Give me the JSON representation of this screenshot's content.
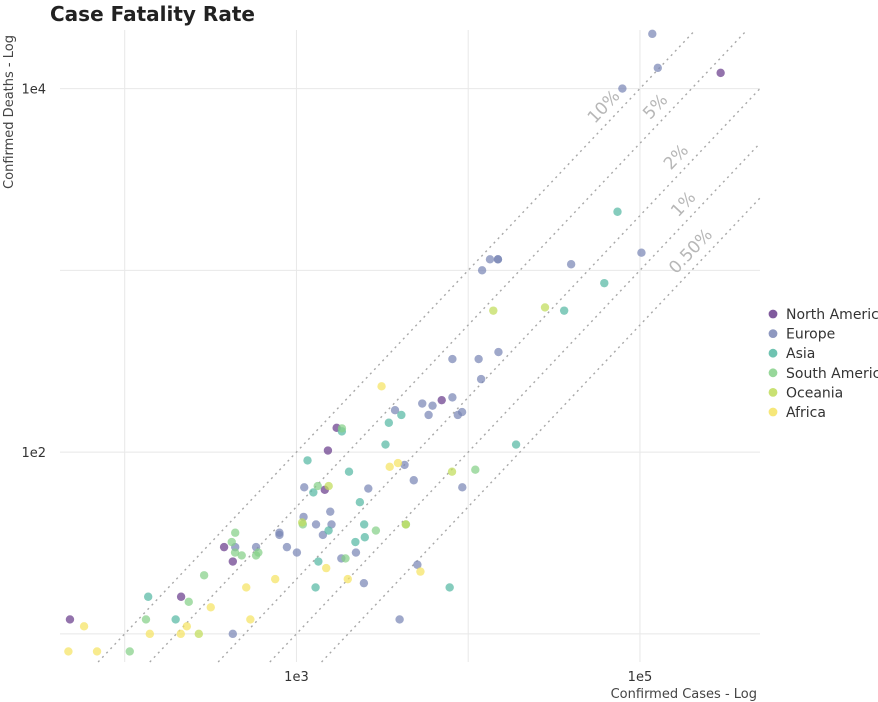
{
  "chart_data": {
    "type": "scatter",
    "title": "Case Fatality Rate",
    "xlabel": "Confirmed Cases - Log",
    "ylabel": "Confirmed Deaths - Log",
    "xscale": "log",
    "yscale": "log",
    "xlim": [
      42,
      500000
    ],
    "ylim": [
      7,
      21000
    ],
    "x_ticks": [
      {
        "value": 1000,
        "label": "1e3"
      },
      {
        "value": 100000,
        "label": "1e5"
      }
    ],
    "y_ticks": [
      {
        "value": 100,
        "label": "1e2"
      },
      {
        "value": 10000,
        "label": "1e4"
      }
    ],
    "grid": true,
    "legend_position": "right",
    "reference_lines": [
      {
        "rate": 0.1,
        "label": "10%"
      },
      {
        "rate": 0.05,
        "label": "5%"
      },
      {
        "rate": 0.02,
        "label": "2%"
      },
      {
        "rate": 0.01,
        "label": "1%"
      },
      {
        "rate": 0.005,
        "label": "0.50%"
      }
    ],
    "series": [
      {
        "name": "North America",
        "color": "#6a3d8c",
        "points": [
          [
            48,
            12
          ],
          [
            213,
            16
          ],
          [
            379,
            30
          ],
          [
            426,
            25
          ],
          [
            1462,
            62
          ],
          [
            1525,
            102
          ],
          [
            1714,
            136
          ],
          [
            7010,
            193
          ],
          [
            295000,
            12200
          ]
        ]
      },
      {
        "name": "Europe",
        "color": "#7a86b5",
        "points": [
          [
            426,
            10
          ],
          [
            440,
            30
          ],
          [
            582,
            30
          ],
          [
            796,
            35
          ],
          [
            796,
            36
          ],
          [
            880,
            30
          ],
          [
            1006,
            28
          ],
          [
            1100,
            44
          ],
          [
            1110,
            64
          ],
          [
            1300,
            40
          ],
          [
            1425,
            35
          ],
          [
            1573,
            47
          ],
          [
            1600,
            40
          ],
          [
            1825,
            26
          ],
          [
            2220,
            28
          ],
          [
            2470,
            19
          ],
          [
            2620,
            63
          ],
          [
            3750,
            170
          ],
          [
            3987,
            12
          ],
          [
            4260,
            85
          ],
          [
            4820,
            70
          ],
          [
            5400,
            185
          ],
          [
            5060,
            24
          ],
          [
            5880,
            160
          ],
          [
            6200,
            180
          ],
          [
            8090,
            325
          ],
          [
            8090,
            200
          ],
          [
            8700,
            160
          ],
          [
            9210,
            166
          ],
          [
            9240,
            64
          ],
          [
            11500,
            325
          ],
          [
            11890,
            252
          ],
          [
            12050,
            1000
          ],
          [
            13390,
            1150
          ],
          [
            14900,
            1150
          ],
          [
            14900,
            1150
          ],
          [
            15000,
            355
          ],
          [
            39750,
            1080
          ],
          [
            79000,
            10000
          ],
          [
            102000,
            1250
          ],
          [
            118000,
            20000
          ],
          [
            127000,
            13000
          ]
        ]
      },
      {
        "name": "Asia",
        "color": "#56b9a3",
        "points": [
          [
            137,
            16
          ],
          [
            198,
            12
          ],
          [
            1160,
            90
          ],
          [
            1254,
            60
          ],
          [
            1292,
            18
          ],
          [
            1341,
            25
          ],
          [
            1538,
            37
          ],
          [
            1838,
            130
          ],
          [
            2023,
            78
          ],
          [
            2204,
            32
          ],
          [
            2340,
            53
          ],
          [
            2479,
            40
          ],
          [
            2500,
            34
          ],
          [
            3300,
            110
          ],
          [
            3450,
            145
          ],
          [
            4080,
            160
          ],
          [
            7800,
            18
          ],
          [
            19000,
            110
          ],
          [
            36200,
            600
          ],
          [
            62000,
            850
          ],
          [
            74000,
            2100
          ]
        ]
      },
      {
        "name": "South America",
        "color": "#85d088",
        "points": [
          [
            107,
            8
          ],
          [
            133,
            12
          ],
          [
            236,
            15
          ],
          [
            290,
            21
          ],
          [
            420,
            32
          ],
          [
            439,
            28
          ],
          [
            440,
            36
          ],
          [
            480,
            27
          ],
          [
            582,
            27
          ],
          [
            600,
            28
          ],
          [
            1089,
            40
          ],
          [
            1330,
            65
          ],
          [
            1840,
            135
          ],
          [
            1930,
            26
          ],
          [
            2900,
            37
          ],
          [
            4340,
            40
          ],
          [
            11000,
            80
          ]
        ]
      },
      {
        "name": "Oceania",
        "color": "#c0dc5a",
        "points": [
          [
            270,
            10
          ],
          [
            1080,
            41
          ],
          [
            1540,
            65
          ],
          [
            4330,
            40
          ],
          [
            8050,
            78
          ],
          [
            14000,
            600
          ],
          [
            28000,
            625
          ]
        ]
      },
      {
        "name": "Africa",
        "color": "#f5e362",
        "points": [
          [
            47,
            8
          ],
          [
            58,
            11
          ],
          [
            69,
            8
          ],
          [
            140,
            10
          ],
          [
            212,
            10
          ],
          [
            230,
            11
          ],
          [
            317,
            14
          ],
          [
            510,
            18
          ],
          [
            539,
            12
          ],
          [
            752,
            20
          ],
          [
            1490,
            23
          ],
          [
            1990,
            20
          ],
          [
            3130,
            230
          ],
          [
            3490,
            83
          ],
          [
            3900,
            87
          ],
          [
            5270,
            22
          ]
        ]
      }
    ]
  }
}
